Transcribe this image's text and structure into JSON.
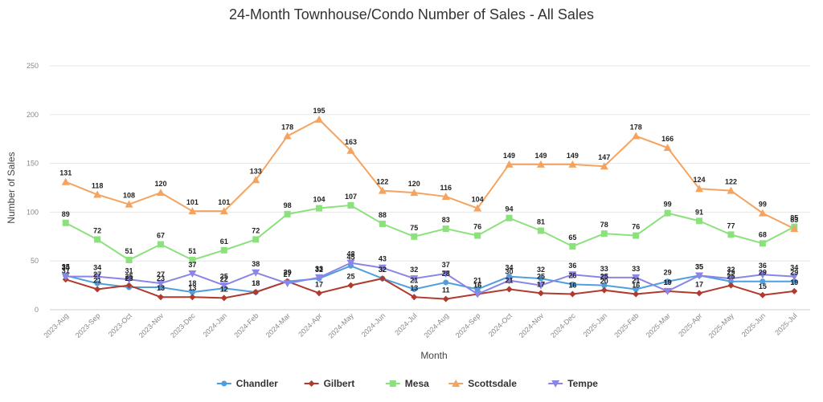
{
  "chart_data": {
    "type": "line",
    "title": "24-Month Townhouse/Condo Number of Sales - All Sales",
    "xlabel": "Month",
    "ylabel": "Number of Sales",
    "ylim": [
      0,
      250
    ],
    "yticks": [
      0,
      50,
      100,
      150,
      200,
      250
    ],
    "grid": true,
    "legend_position": "bottom",
    "categories": [
      "2023-Aug",
      "2023-Sep",
      "2023-Oct",
      "2023-Nov",
      "2023-Dec",
      "2024-Jan",
      "2024-Feb",
      "2024-Mar",
      "2024-Apr",
      "2024-May",
      "2024-Jun",
      "2024-Jul",
      "2024-Aug",
      "2024-Sep",
      "2024-Oct",
      "2024-Nov",
      "2024-Dec",
      "2025-Jan",
      "2025-Feb",
      "2025-Mar",
      "2025-Apr",
      "2025-May",
      "2025-Jun",
      "2025-Jul"
    ],
    "series": [
      {
        "name": "Chandler",
        "color": "#4f9fde",
        "marker": "circle",
        "values": [
          35,
          27,
          23,
          23,
          18,
          22,
          18,
          29,
          32,
          45,
          32,
          21,
          28,
          21,
          34,
          32,
          26,
          25,
          21,
          29,
          35,
          29,
          29,
          29
        ],
        "labels": [
          35,
          27,
          23,
          23,
          18,
          22,
          18,
          29,
          32,
          45,
          32,
          21,
          28,
          21,
          34,
          32,
          26,
          25,
          21,
          29,
          35,
          29,
          29,
          29
        ]
      },
      {
        "name": "Gilbert",
        "color": "#b03a2e",
        "marker": "diamond",
        "values": [
          31,
          21,
          25,
          13,
          13,
          12,
          18,
          29,
          17,
          25,
          32,
          13,
          11,
          16,
          21,
          17,
          16,
          20,
          16,
          19,
          17,
          25,
          15,
          19
        ],
        "labels": [
          31,
          21,
          25,
          13,
          13,
          12,
          18,
          29,
          17,
          25,
          32,
          13,
          11,
          16,
          21,
          17,
          16,
          20,
          16,
          19,
          17,
          25,
          15,
          19
        ]
      },
      {
        "name": "Mesa",
        "color": "#8ce17d",
        "marker": "square",
        "values": [
          89,
          72,
          51,
          67,
          51,
          61,
          72,
          98,
          104,
          107,
          88,
          75,
          83,
          76,
          94,
          81,
          65,
          78,
          76,
          99,
          91,
          77,
          68,
          85
        ],
        "labels": [
          89,
          72,
          51,
          67,
          51,
          61,
          72,
          98,
          104,
          107,
          88,
          75,
          83,
          76,
          94,
          81,
          65,
          78,
          76,
          99,
          91,
          77,
          68,
          85
        ]
      },
      {
        "name": "Scottsdale",
        "color": "#f4a460",
        "marker": "triangle",
        "values": [
          131,
          118,
          108,
          120,
          101,
          101,
          133,
          178,
          195,
          163,
          122,
          120,
          116,
          104,
          149,
          149,
          149,
          147,
          178,
          166,
          124,
          122,
          99,
          83
        ],
        "labels": [
          131,
          118,
          108,
          120,
          101,
          101,
          133,
          178,
          195,
          163,
          122,
          120,
          116,
          104,
          149,
          149,
          149,
          147,
          178,
          166,
          124,
          122,
          99,
          83
        ]
      },
      {
        "name": "Tempe",
        "color": "#8a85e6",
        "marker": "triangle-down",
        "values": [
          34,
          34,
          31,
          27,
          37,
          25,
          38,
          27,
          33,
          48,
          43,
          32,
          37,
          16,
          30,
          25,
          36,
          33,
          33,
          19,
          35,
          32,
          36,
          34
        ],
        "labels": [
          34,
          34,
          31,
          27,
          37,
          25,
          38,
          27,
          33,
          48,
          43,
          32,
          37,
          16,
          30,
          25,
          36,
          33,
          33,
          19,
          35,
          32,
          36,
          34
        ]
      }
    ]
  }
}
